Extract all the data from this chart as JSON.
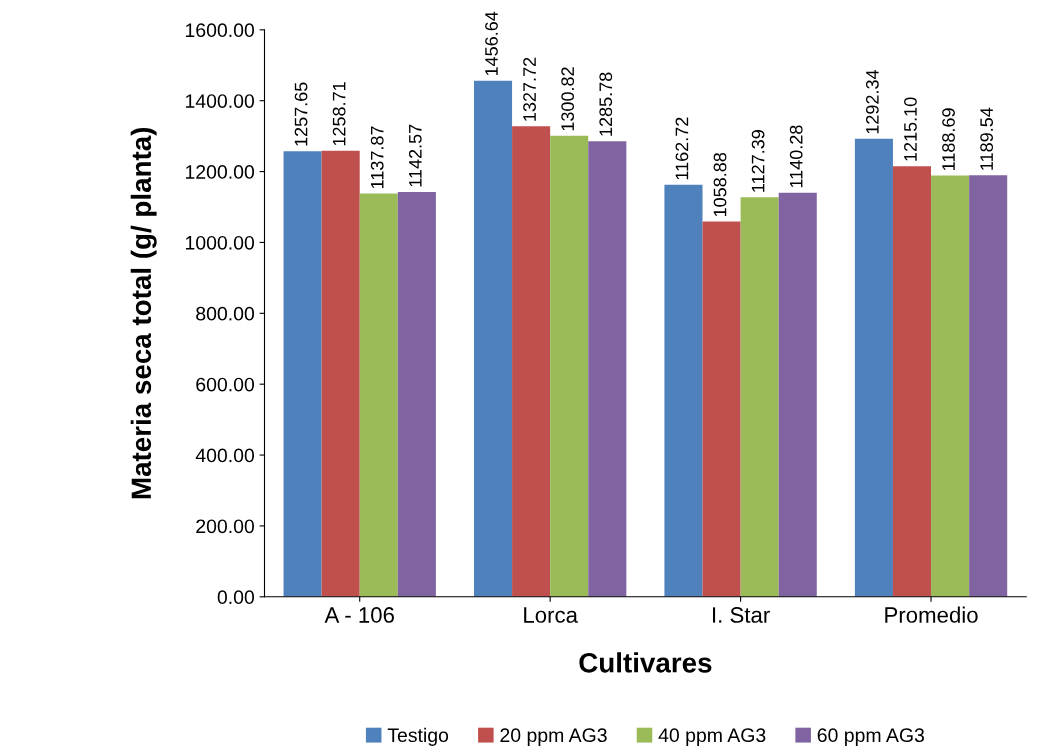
{
  "chart_data": {
    "type": "bar",
    "xlabel": "Cultivares",
    "ylabel": "Materia seca total (g/ planta)",
    "categories": [
      "A - 106",
      "Lorca",
      "I. Star",
      "Promedio"
    ],
    "series": [
      {
        "name": "Testigo",
        "color": "#4f81bd",
        "values": [
          1257.65,
          1456.64,
          1162.72,
          1292.34
        ],
        "value_labels": [
          "1257.65",
          "1456.64",
          "1162.72",
          "1292.34"
        ]
      },
      {
        "name": "20 ppm AG3",
        "color": "#c0504d",
        "values": [
          1258.71,
          1327.72,
          1058.88,
          1215.1
        ],
        "value_labels": [
          "1258.71",
          "1327.72",
          "1058.88",
          "1215.10"
        ]
      },
      {
        "name": "40 ppm AG3",
        "color": "#9bbb59",
        "values": [
          1137.87,
          1300.82,
          1127.39,
          1188.69
        ],
        "value_labels": [
          "1137.87",
          "1300.82",
          "1127.39",
          "1188.69"
        ]
      },
      {
        "name": "60 ppm AG3",
        "color": "#8064a2",
        "values": [
          1142.57,
          1285.78,
          1140.28,
          1189.54
        ],
        "value_labels": [
          "1142.57",
          "1285.78",
          "1140.28",
          "1189.54"
        ]
      }
    ],
    "ylim": [
      0,
      1600
    ],
    "yticks": [
      {
        "value": 0,
        "label": "0.00"
      },
      {
        "value": 200,
        "label": "200.00"
      },
      {
        "value": 400,
        "label": "400.00"
      },
      {
        "value": 600,
        "label": "600.00"
      },
      {
        "value": 800,
        "label": "800.00"
      },
      {
        "value": 1000,
        "label": "1000.00"
      },
      {
        "value": 1200,
        "label": "1200.00"
      },
      {
        "value": 1400,
        "label": "1400.00"
      },
      {
        "value": 1600,
        "label": "1600.00"
      }
    ],
    "grid": false,
    "legend": "bottom"
  }
}
